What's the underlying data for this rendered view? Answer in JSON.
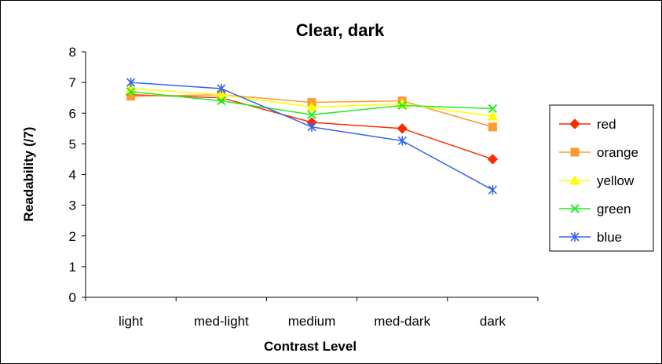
{
  "chart_data": {
    "type": "line",
    "title": "Clear, dark",
    "xlabel": "Contrast Level",
    "ylabel": "Readability (/7)",
    "categories": [
      "light",
      "med-light",
      "medium",
      "med-dark",
      "dark"
    ],
    "ylim": [
      0,
      8
    ],
    "yticks": [
      0,
      1,
      2,
      3,
      4,
      5,
      6,
      7,
      8
    ],
    "grid": false,
    "legend_position": "right",
    "series": [
      {
        "name": "red",
        "color": "#ff2a00",
        "marker": "diamond",
        "values": [
          6.6,
          6.5,
          5.7,
          5.5,
          4.5
        ]
      },
      {
        "name": "orange",
        "color": "#ff9933",
        "marker": "square",
        "values": [
          6.55,
          6.6,
          6.35,
          6.4,
          5.55
        ]
      },
      {
        "name": "yellow",
        "color": "#ffff00",
        "marker": "triangle",
        "values": [
          6.8,
          6.6,
          6.2,
          6.3,
          5.9
        ]
      },
      {
        "name": "green",
        "color": "#22ee22",
        "marker": "x",
        "values": [
          6.7,
          6.4,
          5.95,
          6.25,
          6.15
        ]
      },
      {
        "name": "blue",
        "color": "#3366ee",
        "marker": "star",
        "values": [
          7.0,
          6.8,
          5.55,
          5.1,
          3.5
        ]
      }
    ]
  }
}
